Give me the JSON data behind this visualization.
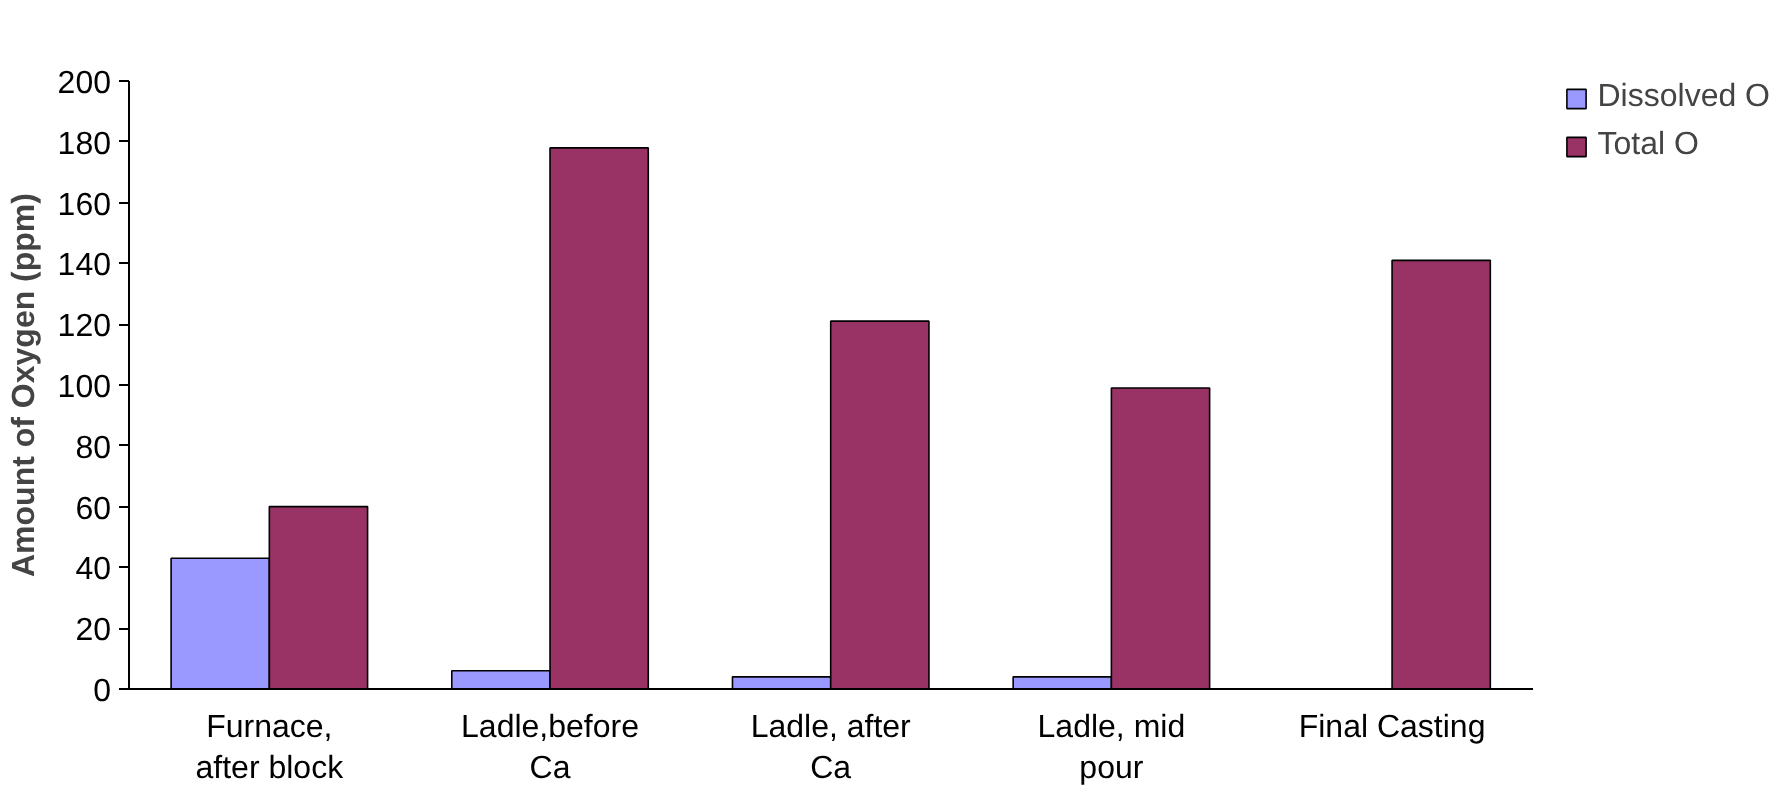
{
  "chart_data": {
    "type": "bar",
    "ylabel": "Amount of Oxygen (ppm)",
    "categories": [
      "Furnace, after block",
      "Ladle,before Ca",
      "Ladle, after Ca",
      "Ladle, mid pour",
      "Final Casting"
    ],
    "series": [
      {
        "name": "Dissolved O",
        "color": "#9999ff",
        "values": [
          43,
          6,
          4,
          4,
          null
        ]
      },
      {
        "name": "Total O",
        "color": "#993366",
        "values": [
          60,
          178,
          121,
          99,
          141
        ]
      }
    ],
    "ylim": [
      0,
      200
    ],
    "yticks": [
      0,
      20,
      40,
      60,
      80,
      100,
      120,
      140,
      160,
      180,
      200
    ],
    "grid": false,
    "legend": "top right"
  }
}
